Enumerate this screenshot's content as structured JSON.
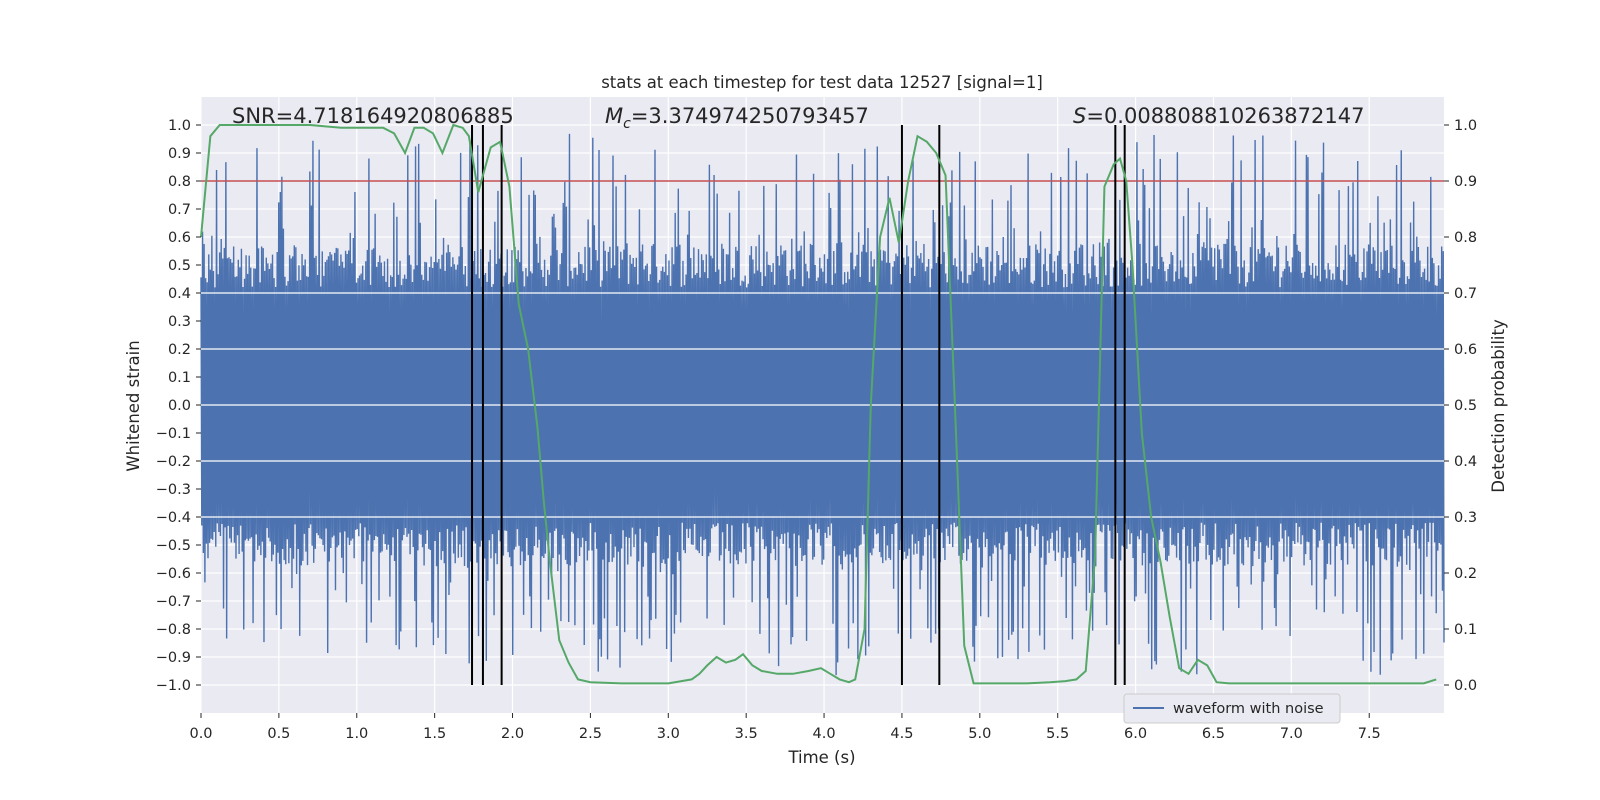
{
  "chart_data": {
    "type": "line",
    "title": "stats at each timestep for test data 12527 [signal=1]",
    "xlabel": "Time (s)",
    "ylabel_left": "Whitened strain",
    "ylabel_right": "Detection probability",
    "xlim": [
      0.0,
      7.98
    ],
    "ylim_left": [
      -1.1,
      1.1
    ],
    "ylim_right": [
      -0.05,
      1.05
    ],
    "grid": true,
    "x_ticks": [
      "0.0",
      "0.5",
      "1.0",
      "1.5",
      "2.0",
      "2.5",
      "3.0",
      "3.5",
      "4.0",
      "4.5",
      "5.0",
      "5.5",
      "6.0",
      "6.5",
      "7.0",
      "7.5"
    ],
    "x_tick_values": [
      0.0,
      0.5,
      1.0,
      1.5,
      2.0,
      2.5,
      3.0,
      3.5,
      4.0,
      4.5,
      5.0,
      5.5,
      6.0,
      6.5,
      7.0,
      7.5
    ],
    "y_ticks_left": [
      "1.0",
      "0.9",
      "0.8",
      "0.7",
      "0.6",
      "0.5",
      "0.4",
      "0.3",
      "0.2",
      "0.1",
      "0.0",
      "−0.1",
      "−0.2",
      "−0.3",
      "−0.4",
      "−0.5",
      "−0.6",
      "−0.7",
      "−0.8",
      "−0.9",
      "−1.0"
    ],
    "y_tick_values_left": [
      1.0,
      0.9,
      0.8,
      0.7,
      0.6,
      0.5,
      0.4,
      0.3,
      0.2,
      0.1,
      0.0,
      -0.1,
      -0.2,
      -0.3,
      -0.4,
      -0.5,
      -0.6,
      -0.7,
      -0.8,
      -0.9,
      -1.0
    ],
    "y_ticks_right": [
      "1.0",
      "0.9",
      "0.8",
      "0.7",
      "0.6",
      "0.5",
      "0.4",
      "0.3",
      "0.2",
      "0.1",
      "0.0"
    ],
    "y_tick_values_right": [
      1.0,
      0.9,
      0.8,
      0.7,
      0.6,
      0.5,
      0.4,
      0.3,
      0.2,
      0.1,
      0.0
    ],
    "annotations": {
      "snr": "SNR=4.718164920806885",
      "mc_symbol": "M",
      "mc_subscript": "c",
      "mc_value": "=3.374974250793457",
      "s_symbol": "S",
      "s_value": "=0.008808810263872147"
    },
    "threshold": {
      "value": 0.9,
      "axis": "right",
      "color": "#c44e52"
    },
    "vertical_lines": [
      1.74,
      1.81,
      1.93,
      4.5,
      4.74,
      5.87,
      5.93
    ],
    "series": [
      {
        "name": "waveform with noise",
        "axis": "left",
        "color": "#4c72b0",
        "kind": "noise",
        "amplitude_envelope": 0.97,
        "sample_count": 1600
      },
      {
        "name": "Detection probability",
        "axis": "right",
        "color": "#55a868",
        "x": [
          0.0,
          0.06,
          0.12,
          0.2,
          0.3,
          0.5,
          0.7,
          0.9,
          1.0,
          1.1,
          1.17,
          1.24,
          1.31,
          1.37,
          1.43,
          1.49,
          1.55,
          1.62,
          1.68,
          1.72,
          1.78,
          1.86,
          1.92,
          1.98,
          2.04,
          2.1,
          2.16,
          2.2,
          2.24,
          2.3,
          2.36,
          2.42,
          2.5,
          2.7,
          3.0,
          3.15,
          3.2,
          3.25,
          3.31,
          3.37,
          3.43,
          3.48,
          3.54,
          3.6,
          3.7,
          3.8,
          3.9,
          3.98,
          4.04,
          4.1,
          4.16,
          4.2,
          4.26,
          4.3,
          4.36,
          4.42,
          4.48,
          4.54,
          4.6,
          4.66,
          4.72,
          4.78,
          4.84,
          4.9,
          4.96,
          5.05,
          5.3,
          5.45,
          5.55,
          5.62,
          5.68,
          5.74,
          5.8,
          5.86,
          5.9,
          5.94,
          5.98,
          6.04,
          6.1,
          6.16,
          6.22,
          6.28,
          6.34,
          6.4,
          6.46,
          6.52,
          6.6,
          7.0,
          7.5,
          7.85,
          7.93
        ],
        "values": [
          0.8,
          0.98,
          1.0,
          1.0,
          1.0,
          1.0,
          1.0,
          0.995,
          0.995,
          0.995,
          0.995,
          0.985,
          0.95,
          0.995,
          0.995,
          0.985,
          0.95,
          1.0,
          0.995,
          0.98,
          0.88,
          0.96,
          0.97,
          0.89,
          0.68,
          0.6,
          0.46,
          0.33,
          0.22,
          0.08,
          0.04,
          0.01,
          0.005,
          0.003,
          0.003,
          0.01,
          0.02,
          0.035,
          0.05,
          0.04,
          0.045,
          0.055,
          0.035,
          0.025,
          0.02,
          0.02,
          0.025,
          0.03,
          0.02,
          0.01,
          0.005,
          0.01,
          0.1,
          0.5,
          0.8,
          0.87,
          0.79,
          0.9,
          0.98,
          0.97,
          0.95,
          0.91,
          0.5,
          0.07,
          0.003,
          0.003,
          0.003,
          0.005,
          0.007,
          0.01,
          0.025,
          0.23,
          0.89,
          0.93,
          0.94,
          0.9,
          0.75,
          0.45,
          0.3,
          0.22,
          0.12,
          0.03,
          0.02,
          0.045,
          0.035,
          0.005,
          0.003,
          0.003,
          0.003,
          0.003,
          0.01
        ]
      }
    ],
    "legend": {
      "location": "lower-center-right",
      "entries": [
        "waveform with noise"
      ]
    }
  }
}
